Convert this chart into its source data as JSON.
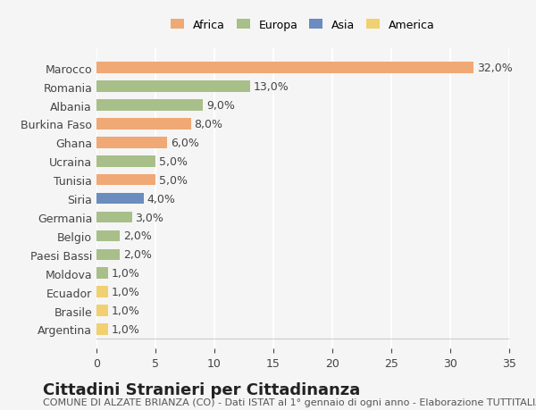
{
  "categories": [
    "Marocco",
    "Romania",
    "Albania",
    "Burkina Faso",
    "Ghana",
    "Ucraina",
    "Tunisia",
    "Siria",
    "Germania",
    "Belgio",
    "Paesi Bassi",
    "Moldova",
    "Ecuador",
    "Brasile",
    "Argentina"
  ],
  "values": [
    32.0,
    13.0,
    9.0,
    8.0,
    6.0,
    5.0,
    5.0,
    4.0,
    3.0,
    2.0,
    2.0,
    1.0,
    1.0,
    1.0,
    1.0
  ],
  "colors": [
    "#f0a875",
    "#a8bf8a",
    "#a8bf8a",
    "#f0a875",
    "#f0a875",
    "#a8bf8a",
    "#f0a875",
    "#6b8cbf",
    "#a8bf8a",
    "#a8bf8a",
    "#a8bf8a",
    "#a8bf8a",
    "#f0d070",
    "#f0d070",
    "#f0d070"
  ],
  "legend_labels": [
    "Africa",
    "Europa",
    "Asia",
    "America"
  ],
  "legend_colors": [
    "#f0a875",
    "#a8bf8a",
    "#6b8cbf",
    "#f0d070"
  ],
  "title": "Cittadini Stranieri per Cittadinanza",
  "subtitle": "COMUNE DI ALZATE BRIANZA (CO) - Dati ISTAT al 1° gennaio di ogni anno - Elaborazione TUTTITALIA.IT",
  "xlim": [
    0,
    35
  ],
  "xticks": [
    0,
    5,
    10,
    15,
    20,
    25,
    30,
    35
  ],
  "background_color": "#f5f5f5",
  "bar_height": 0.6,
  "grid_color": "#ffffff",
  "label_fontsize": 9,
  "title_fontsize": 13,
  "subtitle_fontsize": 8
}
